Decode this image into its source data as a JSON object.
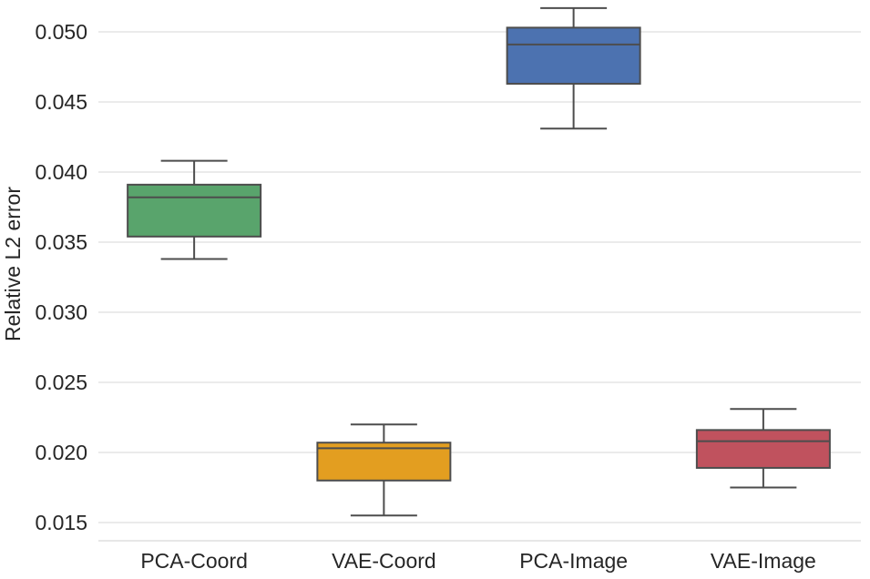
{
  "chart_data": {
    "type": "box",
    "title": "",
    "xlabel": "",
    "ylabel": "Relative L2 error",
    "ylim": [
      0.0136,
      0.0526
    ],
    "yticks": [
      0.015,
      0.02,
      0.025,
      0.03,
      0.035,
      0.04,
      0.045,
      0.05
    ],
    "ytick_labels": [
      "0.015",
      "0.020",
      "0.025",
      "0.030",
      "0.035",
      "0.040",
      "0.045",
      "0.050"
    ],
    "grid": true,
    "categories": [
      "PCA-Coord",
      "VAE-Coord",
      "PCA-Image",
      "VAE-Image"
    ],
    "series": [
      {
        "name": "PCA-Coord",
        "color": "#59a46c",
        "min": 0.0338,
        "q1": 0.0354,
        "median": 0.0382,
        "q3": 0.0391,
        "max": 0.0408
      },
      {
        "name": "VAE-Coord",
        "color": "#e39e20",
        "min": 0.0155,
        "q1": 0.018,
        "median": 0.0203,
        "q3": 0.0207,
        "max": 0.022
      },
      {
        "name": "PCA-Image",
        "color": "#4c72b0",
        "min": 0.0431,
        "q1": 0.0463,
        "median": 0.0491,
        "q3": 0.0503,
        "max": 0.0517
      },
      {
        "name": "VAE-Image",
        "color": "#c0525e",
        "min": 0.0175,
        "q1": 0.0189,
        "median": 0.0208,
        "q3": 0.0216,
        "max": 0.0231
      }
    ]
  }
}
